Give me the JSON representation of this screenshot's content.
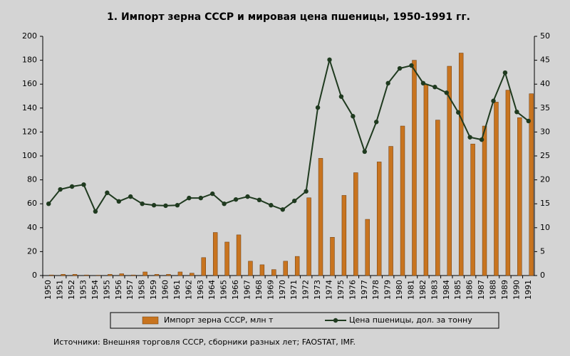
{
  "chart_data": {
    "type": "bar-line",
    "title": "1. Импорт зерна СССР и мировая цена пшеницы, 1950-1991 гг.",
    "source": "Источники: Внешняя торговля СССР, сборники разных лет; FAOSTAT, IMF.",
    "categories": [
      "1950",
      "1951",
      "1952",
      "1953",
      "1954",
      "1955",
      "1956",
      "1957",
      "1958",
      "1959",
      "1960",
      "1961",
      "1962",
      "1963",
      "1964",
      "1965",
      "1966",
      "1967",
      "1968",
      "1969",
      "1970",
      "1971",
      "1972",
      "1973",
      "1974",
      "1975",
      "1976",
      "1977",
      "1978",
      "1979",
      "1980",
      "1981",
      "1982",
      "1983",
      "1984",
      "1985",
      "1986",
      "1987",
      "1988",
      "1989",
      "1990",
      "1991"
    ],
    "series": [
      {
        "name": "Импорт зерна СССР, млн т",
        "type": "bar",
        "color": "#c8741f",
        "axis": "y",
        "values": [
          0.5,
          1,
          1,
          0.5,
          0.3,
          1,
          1.5,
          0.5,
          3,
          1,
          1,
          3,
          2,
          15,
          36,
          28,
          34,
          12,
          9,
          5,
          12,
          16,
          65,
          98,
          32,
          67,
          86,
          47,
          95,
          108,
          125,
          180,
          160,
          130,
          175,
          186,
          110,
          125,
          145,
          155,
          132,
          152
        ]
      },
      {
        "name": "Цена пшеницы, дол. за тонну",
        "type": "line",
        "color": "#1f3a1f",
        "axis": "y2",
        "values": [
          15.0,
          18.0,
          18.6,
          19.0,
          13.4,
          17.3,
          15.5,
          16.5,
          15.0,
          14.7,
          14.6,
          14.7,
          16.2,
          16.2,
          17.1,
          15.0,
          15.9,
          16.5,
          15.8,
          14.7,
          13.8,
          15.6,
          17.6,
          35.1,
          45.1,
          37.4,
          33.3,
          25.9,
          32.1,
          40.2,
          43.3,
          43.9,
          40.2,
          39.4,
          38.2,
          34.1,
          28.9,
          28.4,
          36.5,
          42.4,
          34.2,
          32.3
        ]
      }
    ],
    "ylim": [
      0,
      200
    ],
    "yticks": [
      0,
      20,
      40,
      60,
      80,
      100,
      120,
      140,
      160,
      180,
      200
    ],
    "y2lim": [
      0,
      50
    ],
    "y2ticks": [
      0,
      5,
      10,
      15,
      20,
      25,
      30,
      35,
      40,
      45,
      50
    ]
  }
}
